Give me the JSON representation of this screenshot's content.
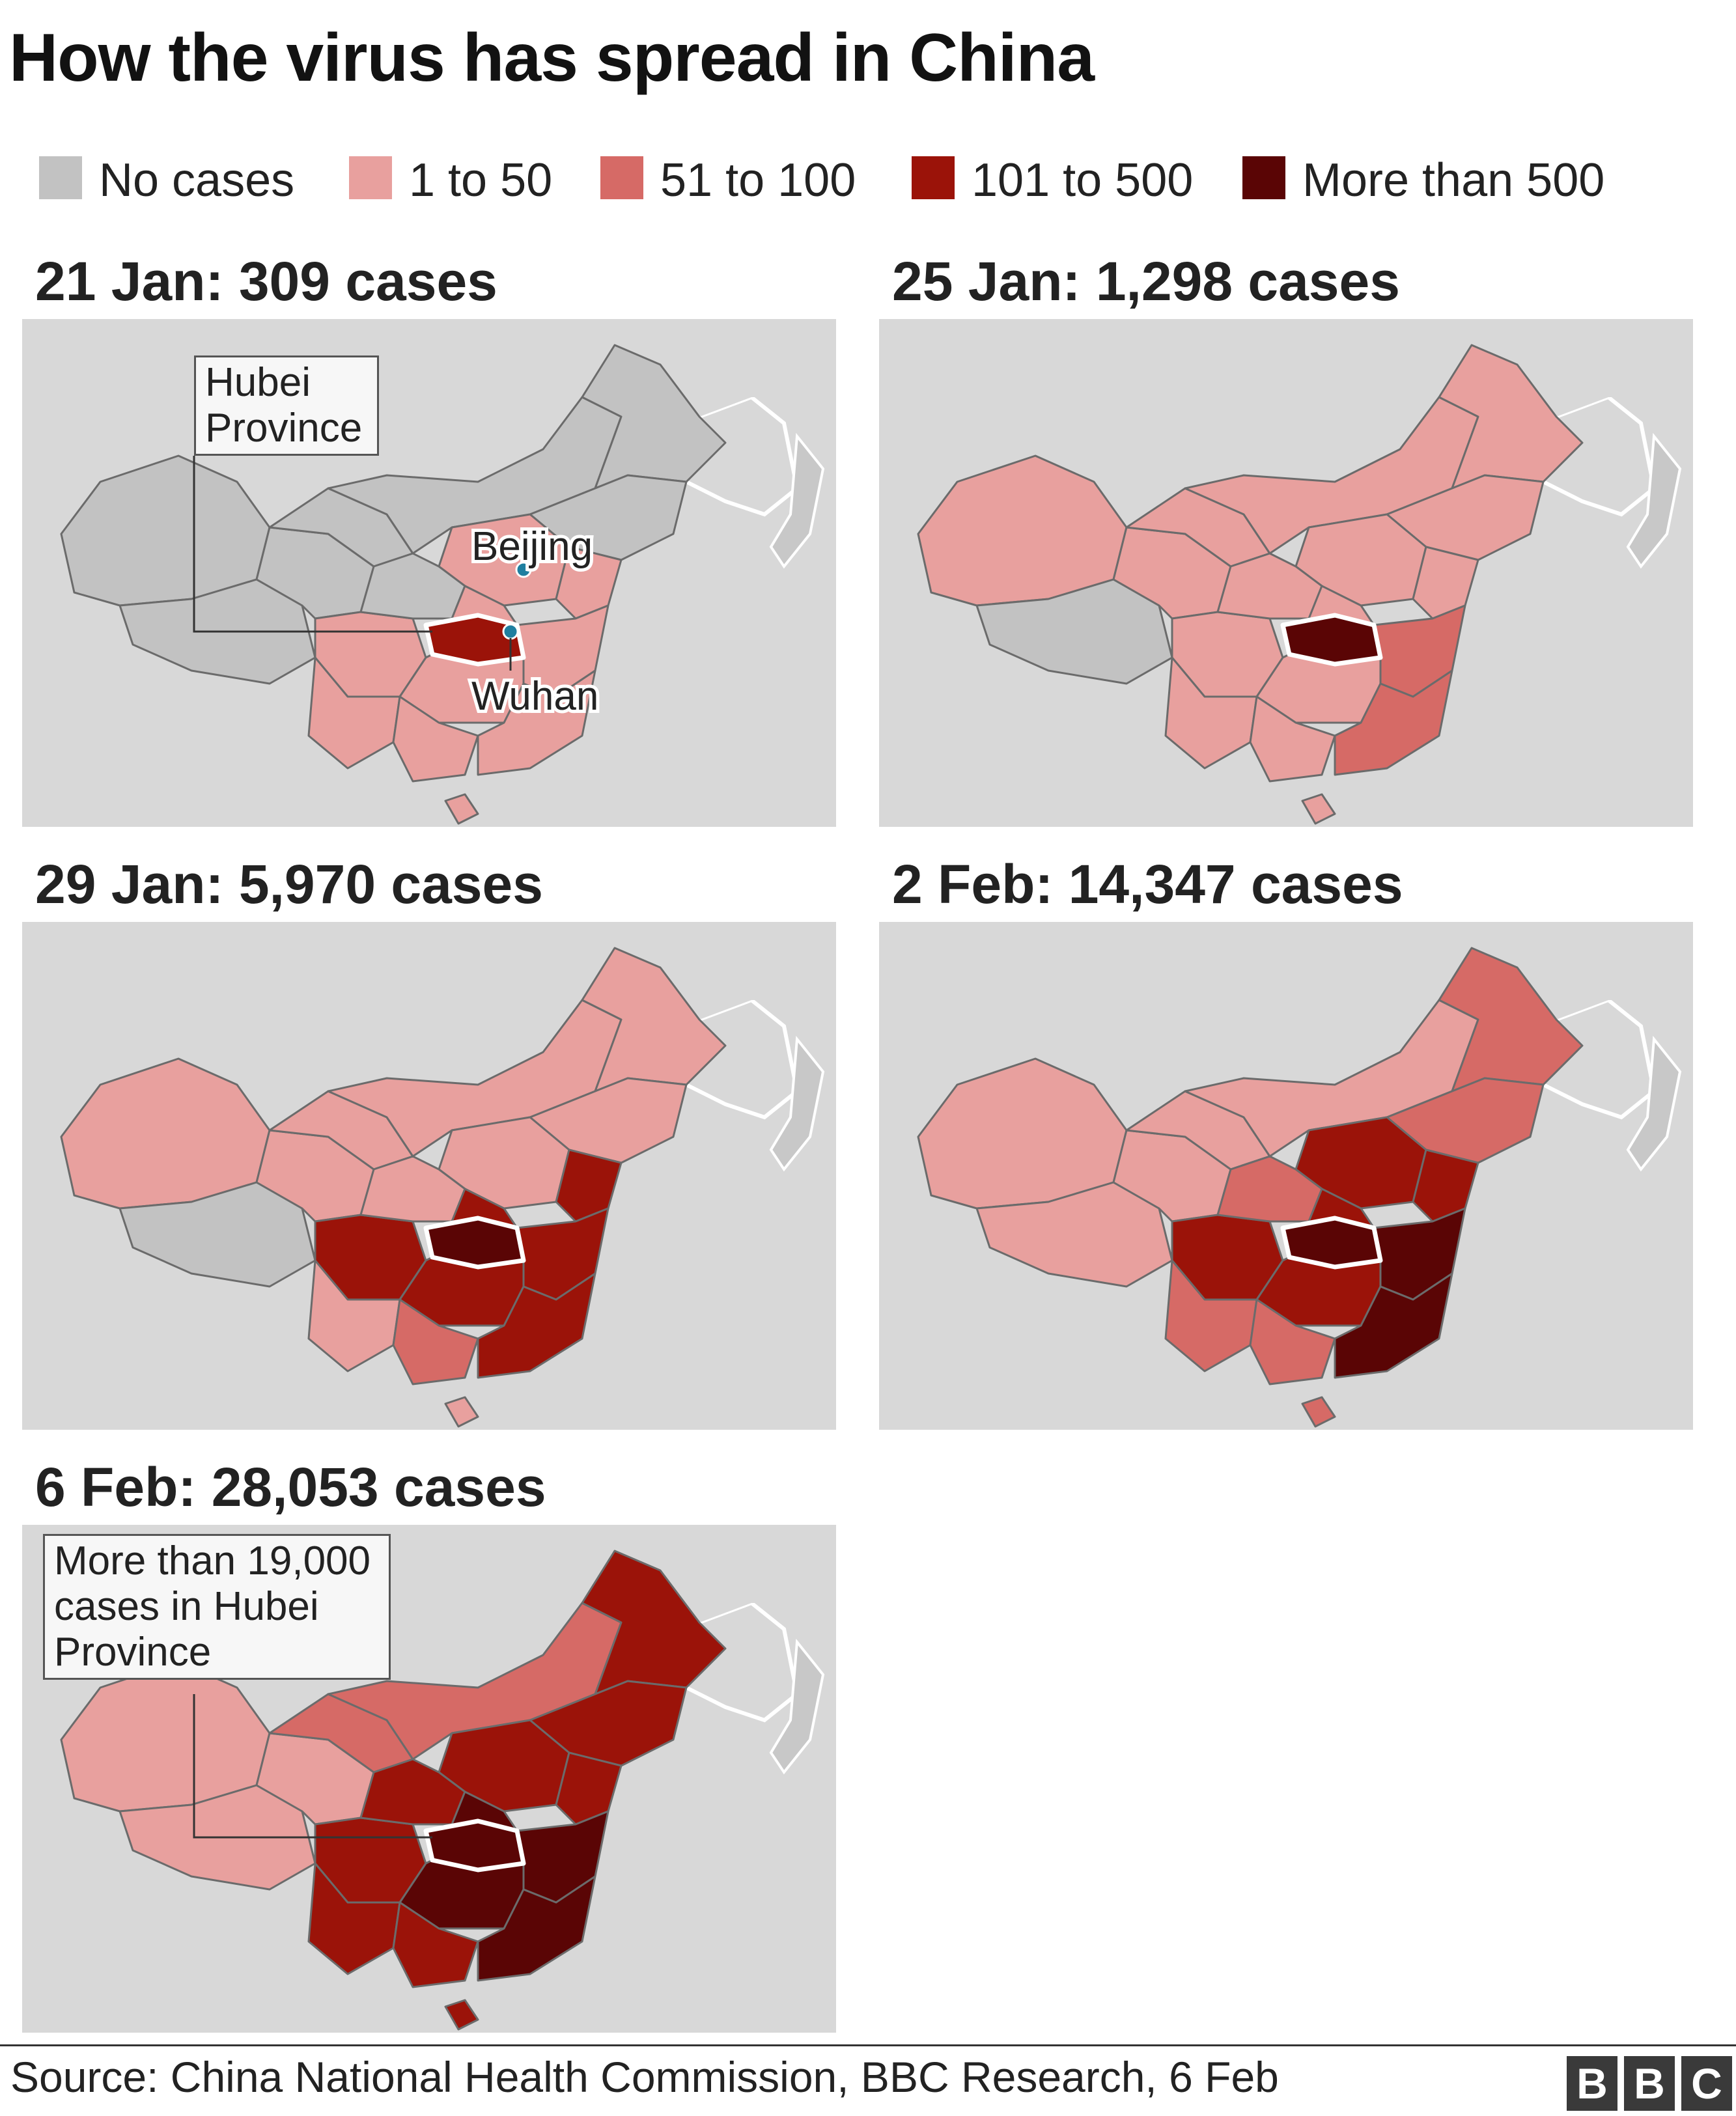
{
  "title": "How the virus has spread in China",
  "legend": [
    {
      "label": "No cases",
      "color": "#c2c2c2"
    },
    {
      "label": "1 to 50",
      "color": "#e8a09e"
    },
    {
      "label": "51 to 100",
      "color": "#d66a66"
    },
    {
      "label": "101 to 500",
      "color": "#9b1309"
    },
    {
      "label": "More than 500",
      "color": "#5a0505"
    }
  ],
  "panels": [
    {
      "heading": "21 Jan: 309 cases",
      "callout": "Hubei\nProvince",
      "cities": [
        "Beijing",
        "Wuhan"
      ]
    },
    {
      "heading": "25 Jan: 1,298 cases"
    },
    {
      "heading": "29 Jan: 5,970 cases"
    },
    {
      "heading": "2 Feb: 14,347 cases"
    },
    {
      "heading": "6 Feb: 28,053 cases",
      "callout": "More than 19,000\ncases in Hubei\nProvince"
    }
  ],
  "source": "Source: China National Health Commission, BBC Research, 6 Feb",
  "logo": [
    "B",
    "B",
    "C"
  ]
}
